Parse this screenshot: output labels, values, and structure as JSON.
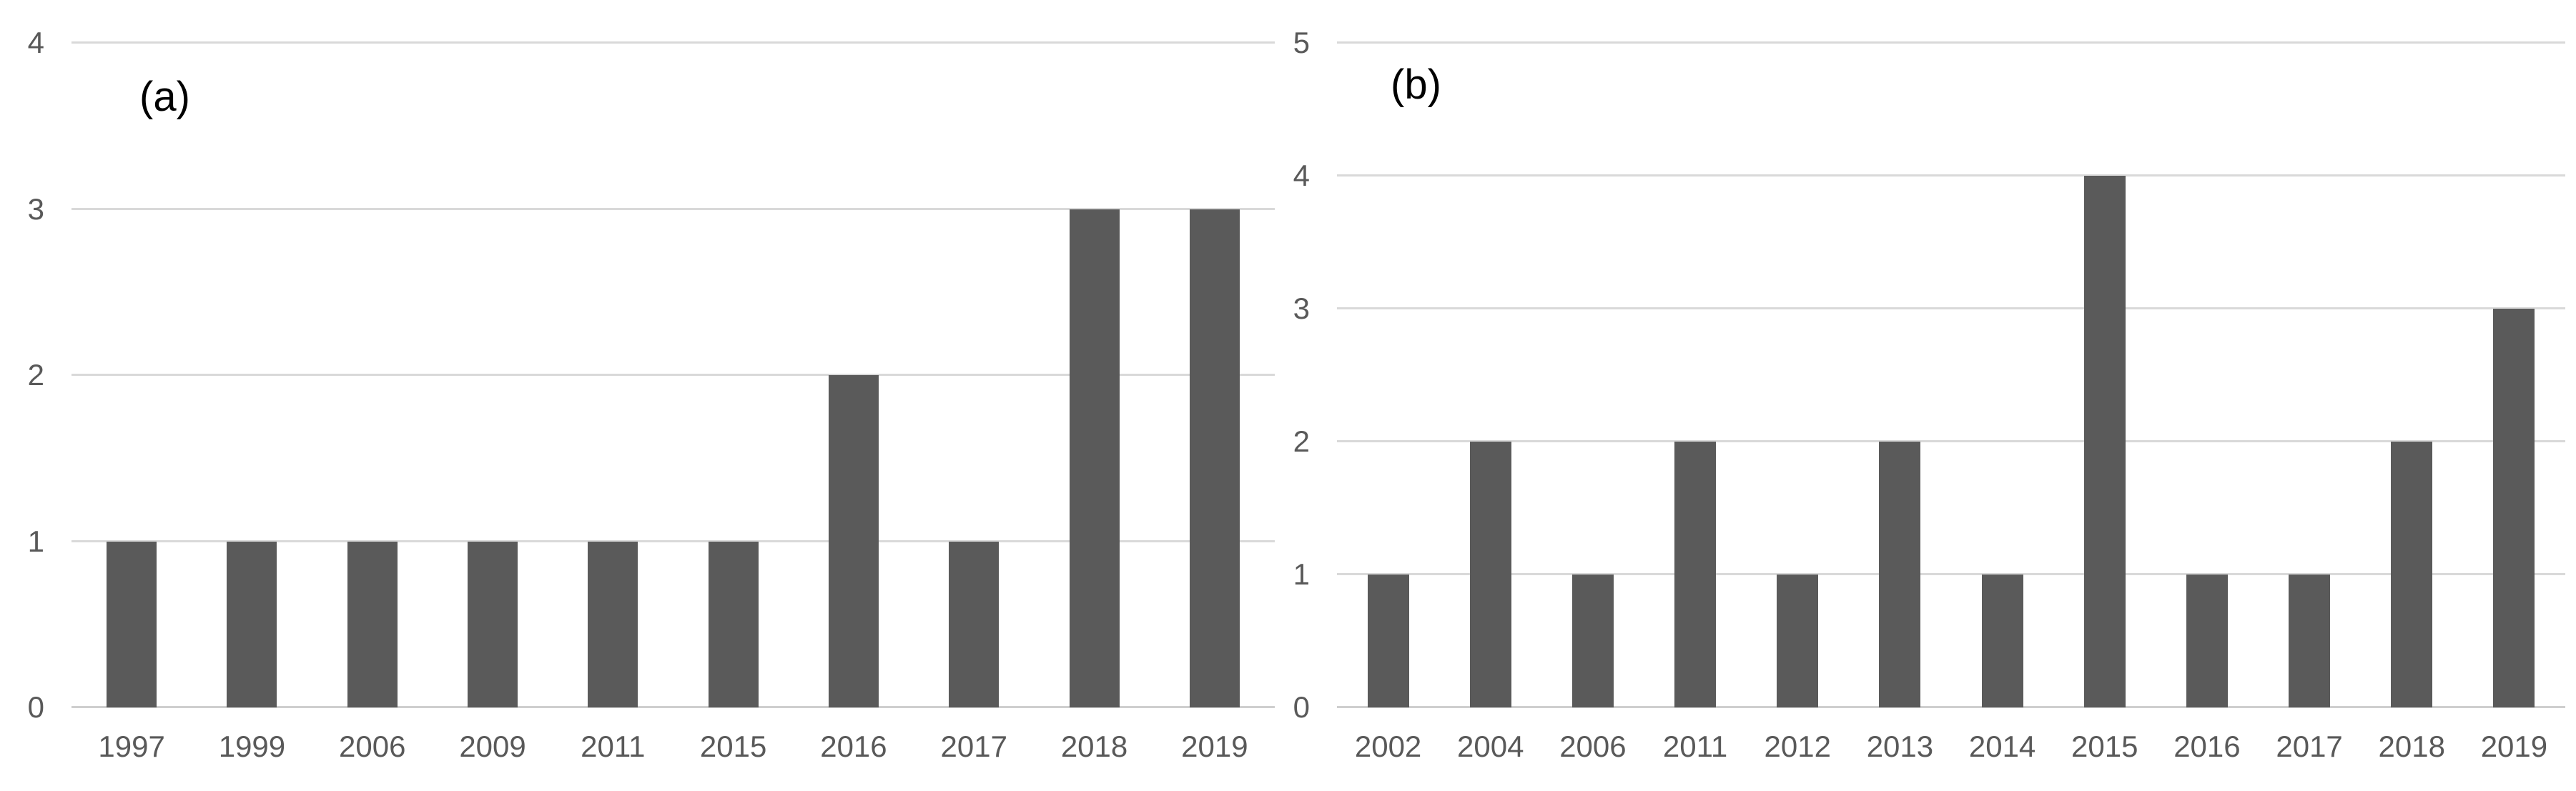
{
  "style": {
    "background": "#FFFFFF",
    "bar_color": "#5A5A5A",
    "gridline_color": "#D9D9D9",
    "axis_line_color": "#CFCFCF",
    "tick_label_color": "#595959",
    "panel_label_color": "#000000"
  },
  "chart_data": [
    {
      "id": "a",
      "type": "bar",
      "panel_label": "(a)",
      "title": "",
      "xlabel": "",
      "ylabel": "",
      "categories": [
        "1997",
        "1999",
        "2006",
        "2009",
        "2011",
        "2015",
        "2016",
        "2017",
        "2018",
        "2019"
      ],
      "values": [
        1,
        1,
        1,
        1,
        1,
        1,
        2,
        1,
        3,
        3
      ],
      "ylim": [
        0,
        4
      ],
      "yticks": [
        0,
        1,
        2,
        3,
        4
      ],
      "grid": true,
      "legend_position": "none"
    },
    {
      "id": "b",
      "type": "bar",
      "panel_label": "(b)",
      "title": "",
      "xlabel": "",
      "ylabel": "",
      "categories": [
        "2002",
        "2004",
        "2006",
        "2011",
        "2012",
        "2013",
        "2014",
        "2015",
        "2016",
        "2017",
        "2018",
        "2019"
      ],
      "values": [
        1,
        2,
        1,
        2,
        1,
        2,
        1,
        4,
        1,
        1,
        2,
        3
      ],
      "ylim": [
        0,
        5
      ],
      "yticks": [
        0,
        1,
        2,
        3,
        4,
        5
      ],
      "grid": true,
      "legend_position": "none"
    }
  ]
}
